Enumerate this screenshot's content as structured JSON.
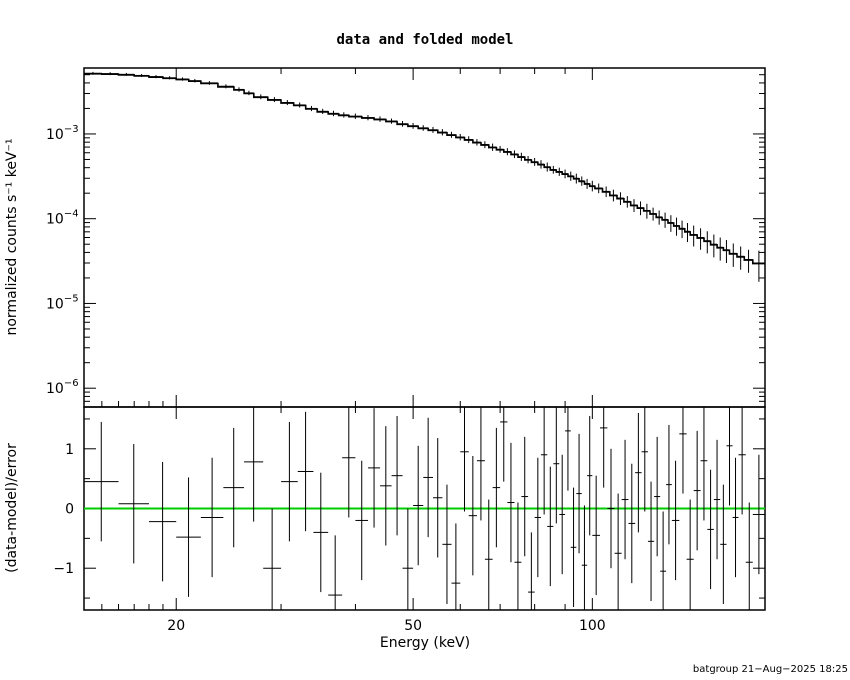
{
  "chart_data": [
    {
      "type": "line",
      "title": "data and folded model",
      "ylabel": "normalized counts s⁻¹ keV⁻¹",
      "xlabel": "",
      "xscale": "log",
      "yscale": "log",
      "xlim": [
        14,
        195
      ],
      "ylim": [
        6e-07,
        0.006
      ],
      "yticks": [
        {
          "value": 1e-06,
          "base": "10",
          "exp": "−6"
        },
        {
          "value": 1e-05,
          "base": "10",
          "exp": "−5"
        },
        {
          "value": 0.0001,
          "base": "10",
          "exp": "−4"
        },
        {
          "value": 0.001,
          "base": "10",
          "exp": "−3"
        }
      ],
      "series": [
        {
          "color": "#000000",
          "points": [
            [
              14.0,
              15.0,
              0.0052,
              0.0002
            ],
            [
              15.0,
              16.0,
              0.00515,
              0.0002
            ],
            [
              16.0,
              17.0,
              0.00505,
              0.0002
            ],
            [
              17.0,
              18.0,
              0.0049,
              0.0002
            ],
            [
              18.0,
              19.0,
              0.00475,
              0.0002
            ],
            [
              19.0,
              20.0,
              0.0046,
              0.0002
            ],
            [
              20.0,
              21.0,
              0.00445,
              0.0002
            ],
            [
              21.0,
              22.0,
              0.00425,
              0.0002
            ],
            [
              22.0,
              23.5,
              0.004,
              0.0002
            ],
            [
              23.5,
              25.0,
              0.00365,
              0.0002
            ],
            [
              25.0,
              26.0,
              0.00335,
              0.0002
            ],
            [
              26.0,
              27.0,
              0.00305,
              0.00018
            ],
            [
              27.0,
              28.5,
              0.00275,
              0.00018
            ],
            [
              28.5,
              30.0,
              0.00255,
              0.00017
            ],
            [
              30.0,
              31.5,
              0.00235,
              0.00016
            ],
            [
              31.5,
              33.0,
              0.0022,
              0.00015
            ],
            [
              33.0,
              34.5,
              0.002,
              0.00014
            ],
            [
              34.5,
              36.0,
              0.00185,
              0.00013
            ],
            [
              36.0,
              37.5,
              0.00175,
              0.00013
            ],
            [
              37.5,
              39.0,
              0.00168,
              0.00012
            ],
            [
              39.0,
              41.0,
              0.00162,
              0.00012
            ],
            [
              41.0,
              43.0,
              0.00156,
              0.00011
            ],
            [
              43.0,
              45.0,
              0.0015,
              0.00011
            ],
            [
              45.0,
              47.0,
              0.00142,
              0.0001
            ],
            [
              47.0,
              49.0,
              0.00132,
              0.0001
            ],
            [
              49.0,
              51.0,
              0.00125,
              0.0001
            ],
            [
              51.0,
              53.0,
              0.00118,
              9e-05
            ],
            [
              53.0,
              55.0,
              0.00112,
              9e-05
            ],
            [
              55.0,
              57.0,
              0.00105,
              9e-05
            ],
            [
              57.0,
              59.0,
              0.00098,
              8e-05
            ],
            [
              59.0,
              61.0,
              0.00092,
              8e-05
            ],
            [
              61.0,
              63.0,
              0.00086,
              8e-05
            ],
            [
              63.0,
              65.0,
              0.0008,
              7e-05
            ],
            [
              65.0,
              67.0,
              0.00075,
              7e-05
            ],
            [
              67.0,
              69.0,
              0.0007,
              7e-05
            ],
            [
              69.0,
              71.0,
              0.00066,
              6e-05
            ],
            [
              71.0,
              73.0,
              0.00062,
              6e-05
            ],
            [
              73.0,
              75.0,
              0.00058,
              6e-05
            ],
            [
              75.0,
              77.0,
              0.00054,
              6e-05
            ],
            [
              77.0,
              79.0,
              0.0005,
              5e-05
            ],
            [
              79.0,
              81.0,
              0.00047,
              5e-05
            ],
            [
              81.0,
              83.0,
              0.00044,
              5e-05
            ],
            [
              83.0,
              85.0,
              0.00041,
              5e-05
            ],
            [
              85.0,
              87.0,
              0.00038,
              4e-05
            ],
            [
              87.0,
              89.0,
              0.00036,
              4e-05
            ],
            [
              89.0,
              91.0,
              0.00034,
              4e-05
            ],
            [
              91.0,
              93.0,
              0.00032,
              4e-05
            ],
            [
              93.0,
              95.0,
              0.0003,
              4e-05
            ],
            [
              95.0,
              97.0,
              0.00028,
              3.5e-05
            ],
            [
              97.0,
              99.0,
              0.00026,
              3.5e-05
            ],
            [
              99.0,
              101.0,
              0.000245,
              3.5e-05
            ],
            [
              101.0,
              104.0,
              0.00023,
              3e-05
            ],
            [
              104.0,
              107.0,
              0.00021,
              3e-05
            ],
            [
              107.0,
              110.0,
              0.00019,
              3e-05
            ],
            [
              110.0,
              113.0,
              0.000175,
              3e-05
            ],
            [
              113.0,
              116.0,
              0.00016,
              2.5e-05
            ],
            [
              116.0,
              119.0,
              0.000145,
              2.5e-05
            ],
            [
              119.0,
              122.0,
              0.000135,
              2.5e-05
            ],
            [
              122.0,
              125.0,
              0.000125,
              2.5e-05
            ],
            [
              125.0,
              128.0,
              0.000115,
              2e-05
            ],
            [
              128.0,
              131.0,
              0.000105,
              2e-05
            ],
            [
              131.0,
              134.0,
              9.8e-05,
              2e-05
            ],
            [
              134.0,
              137.0,
              9e-05,
              2e-05
            ],
            [
              137.0,
              140.0,
              8.3e-05,
              2e-05
            ],
            [
              140.0,
              143.0,
              7.7e-05,
              1.8e-05
            ],
            [
              143.0,
              146.0,
              7.1e-05,
              1.8e-05
            ],
            [
              146.0,
              150.0,
              6.5e-05,
              1.8e-05
            ],
            [
              150.0,
              154.0,
              6e-05,
              1.7e-05
            ],
            [
              154.0,
              158.0,
              5.5e-05,
              1.6e-05
            ],
            [
              158.0,
              162.0,
              5e-05,
              1.5e-05
            ],
            [
              162.0,
              166.0,
              4.6e-05,
              1.4e-05
            ],
            [
              166.0,
              170.0,
              4.3e-05,
              1.3e-05
            ],
            [
              170.0,
              175.0,
              3.9e-05,
              1.2e-05
            ],
            [
              175.0,
              180.0,
              3.6e-05,
              1.1e-05
            ],
            [
              180.0,
              186.0,
              3.3e-05,
              1e-05
            ],
            [
              186.0,
              195.0,
              3e-05,
              1.2e-05
            ]
          ]
        }
      ]
    },
    {
      "type": "scatter",
      "ylabel": "(data-model)/error",
      "xlabel": "Energy (keV)",
      "xscale": "log",
      "xlim": [
        14,
        195
      ],
      "ylim": [
        -1.7,
        1.7
      ],
      "yticks": [
        -1,
        0,
        1
      ],
      "xticks": [
        20,
        50,
        100
      ],
      "series": [
        {
          "color": "#000000",
          "points": [
            [
              14.0,
              16.0,
              0.45,
              1.0
            ],
            [
              16.0,
              18.0,
              0.08,
              1.0
            ],
            [
              18.0,
              20.0,
              -0.22,
              1.0
            ],
            [
              20.0,
              22.0,
              -0.48,
              1.0
            ],
            [
              22.0,
              24.0,
              -0.15,
              1.0
            ],
            [
              24.0,
              26.0,
              0.35,
              1.0
            ],
            [
              26.0,
              28.0,
              0.78,
              1.0
            ],
            [
              28.0,
              30.0,
              -1.0,
              1.0
            ],
            [
              30.0,
              32.0,
              0.45,
              1.0
            ],
            [
              32.0,
              34.0,
              0.62,
              1.0
            ],
            [
              34.0,
              36.0,
              -0.4,
              1.0
            ],
            [
              36.0,
              38.0,
              -1.45,
              1.0
            ],
            [
              38.0,
              40.0,
              0.85,
              1.0
            ],
            [
              40.0,
              42.0,
              -0.2,
              1.0
            ],
            [
              42.0,
              44.0,
              0.68,
              1.0
            ],
            [
              44.0,
              46.0,
              0.38,
              1.0
            ],
            [
              46.0,
              48.0,
              0.55,
              1.0
            ],
            [
              48.0,
              50.0,
              -1.0,
              1.0
            ],
            [
              50.0,
              52.0,
              0.05,
              1.0
            ],
            [
              52.0,
              54.0,
              0.52,
              1.0
            ],
            [
              54.0,
              56.0,
              0.18,
              1.0
            ],
            [
              56.0,
              58.0,
              -0.6,
              1.0
            ],
            [
              58.0,
              60.0,
              -1.25,
              1.0
            ],
            [
              60.0,
              62.0,
              0.95,
              1.0
            ],
            [
              62.0,
              64.0,
              -0.12,
              1.0
            ],
            [
              64.0,
              66.0,
              0.8,
              1.0
            ],
            [
              66.0,
              68.0,
              -0.85,
              1.0
            ],
            [
              68.0,
              70.0,
              0.35,
              1.0
            ],
            [
              70.0,
              72.0,
              1.45,
              1.0
            ],
            [
              72.0,
              74.0,
              0.1,
              1.0
            ],
            [
              74.0,
              76.0,
              -0.9,
              1.0
            ],
            [
              76.0,
              78.0,
              0.2,
              1.0
            ],
            [
              78.0,
              80.0,
              -1.4,
              1.0
            ],
            [
              80.0,
              82.0,
              -0.15,
              1.0
            ],
            [
              82.0,
              84.0,
              0.9,
              1.0
            ],
            [
              84.0,
              86.0,
              -0.3,
              1.0
            ],
            [
              86.0,
              88.0,
              0.75,
              1.0
            ],
            [
              88.0,
              90.0,
              -0.1,
              1.0
            ],
            [
              90.0,
              92.0,
              1.3,
              1.0
            ],
            [
              92.0,
              94.0,
              -0.65,
              1.0
            ],
            [
              94.0,
              96.0,
              0.25,
              1.0
            ],
            [
              96.0,
              98.0,
              -0.95,
              1.0
            ],
            [
              98.0,
              100.0,
              0.55,
              1.0
            ],
            [
              100.0,
              103.0,
              -0.45,
              1.0
            ],
            [
              103.0,
              106.0,
              1.35,
              1.0
            ],
            [
              106.0,
              109.0,
              0.0,
              1.0
            ],
            [
              109.0,
              112.0,
              -0.75,
              1.0
            ],
            [
              112.0,
              115.0,
              0.15,
              1.0
            ],
            [
              115.0,
              118.0,
              -0.25,
              1.0
            ],
            [
              118.0,
              121.0,
              0.6,
              1.0
            ],
            [
              121.0,
              124.0,
              0.95,
              1.0
            ],
            [
              124.0,
              127.0,
              -0.55,
              1.0
            ],
            [
              127.0,
              130.0,
              0.2,
              1.0
            ],
            [
              130.0,
              133.0,
              -1.05,
              1.0
            ],
            [
              133.0,
              136.0,
              0.4,
              1.0
            ],
            [
              136.0,
              140.0,
              -0.2,
              1.0
            ],
            [
              140.0,
              144.0,
              1.25,
              1.0
            ],
            [
              144.0,
              148.0,
              -0.85,
              1.0
            ],
            [
              148.0,
              152.0,
              0.3,
              1.0
            ],
            [
              152.0,
              156.0,
              0.8,
              1.0
            ],
            [
              156.0,
              160.0,
              -0.35,
              1.0
            ],
            [
              160.0,
              164.0,
              0.15,
              1.0
            ],
            [
              164.0,
              168.0,
              -0.6,
              1.0
            ],
            [
              168.0,
              172.0,
              1.05,
              1.0
            ],
            [
              172.0,
              176.0,
              -0.15,
              1.0
            ],
            [
              176.0,
              181.0,
              0.9,
              1.0
            ],
            [
              181.0,
              186.0,
              -0.9,
              1.0
            ],
            [
              186.0,
              195.0,
              -0.1,
              1.0
            ]
          ]
        }
      ],
      "zero_line_color": "#00cc00"
    }
  ],
  "footer": "batgroup 21−Aug−2025 18:25"
}
